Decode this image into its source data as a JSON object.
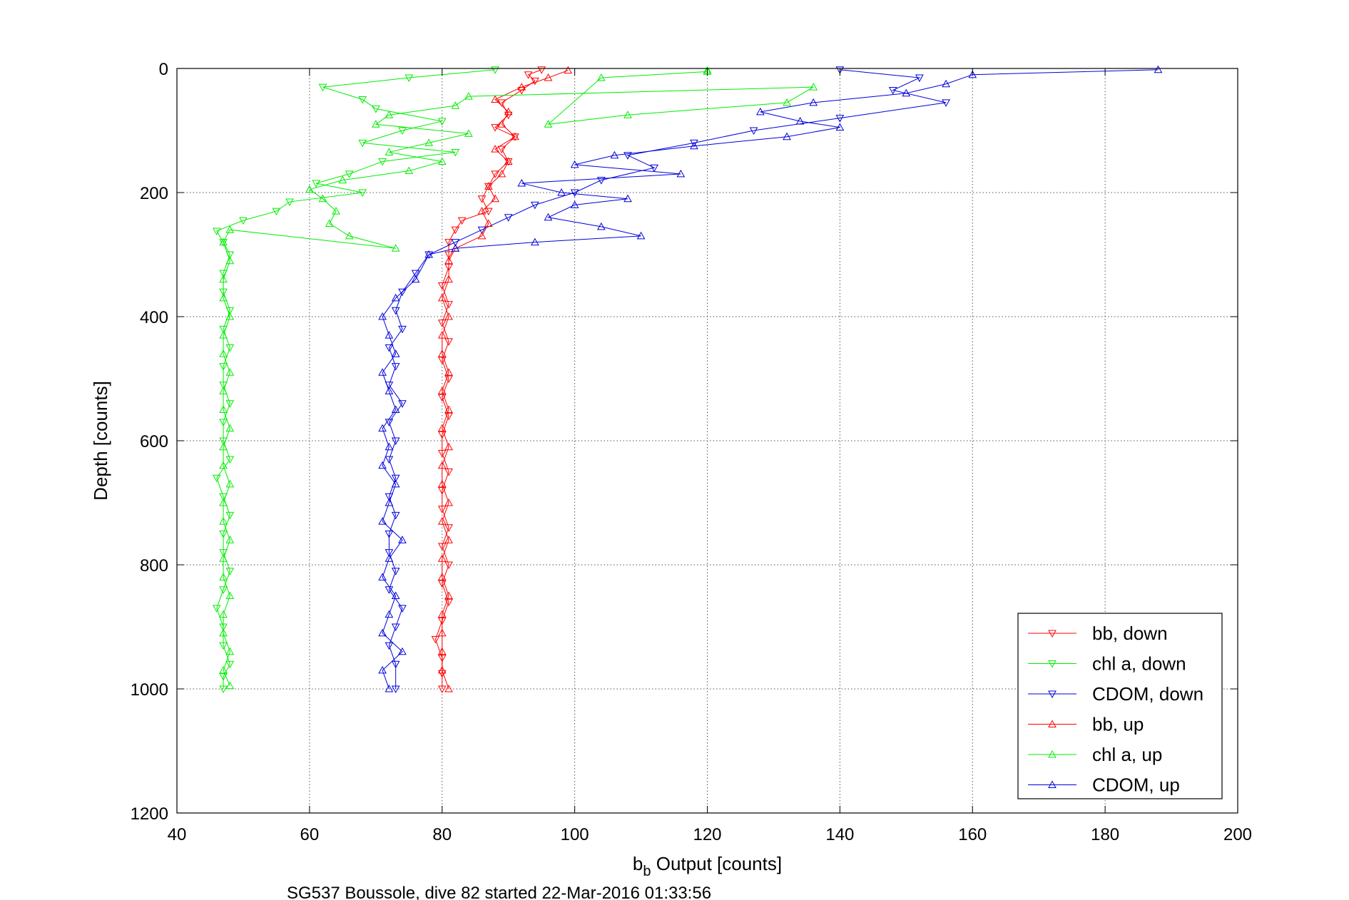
{
  "chart_data": {
    "type": "line",
    "xlabel_main": "b",
    "xlabel_sub": "b",
    "xlabel_rest": " Output [counts]",
    "ylabel": "Depth [counts]",
    "footer": "SG537 Boussole, dive 82 started 22-Mar-2016 01:33:56",
    "xlim": [
      40,
      200
    ],
    "ylim": [
      0,
      1200
    ],
    "y_reversed": true,
    "grid": true,
    "legend_position": "bottom-right",
    "x_ticks": [
      "40",
      "60",
      "80",
      "100",
      "120",
      "140",
      "160",
      "180",
      "200"
    ],
    "y_ticks": [
      "0",
      "200",
      "400",
      "600",
      "800",
      "1000",
      "1200"
    ],
    "series": [
      {
        "name": "bb, down",
        "color": "#ff0000",
        "marker": "triangle-down",
        "points": [
          [
            95,
            2
          ],
          [
            93,
            10
          ],
          [
            94,
            20
          ],
          [
            92,
            35
          ],
          [
            89,
            55
          ],
          [
            90,
            75
          ],
          [
            88,
            95
          ],
          [
            91,
            110
          ],
          [
            89,
            130
          ],
          [
            90,
            150
          ],
          [
            88,
            170
          ],
          [
            87,
            190
          ],
          [
            86,
            210
          ],
          [
            87,
            230
          ],
          [
            83,
            245
          ],
          [
            82,
            260
          ],
          [
            81,
            280
          ],
          [
            81,
            300
          ],
          [
            81,
            320
          ],
          [
            80,
            350
          ],
          [
            81,
            380
          ],
          [
            80,
            410
          ],
          [
            81,
            440
          ],
          [
            80,
            470
          ],
          [
            81,
            500
          ],
          [
            80,
            530
          ],
          [
            81,
            560
          ],
          [
            80,
            590
          ],
          [
            80,
            620
          ],
          [
            81,
            650
          ],
          [
            80,
            680
          ],
          [
            80,
            710
          ],
          [
            81,
            740
          ],
          [
            80,
            770
          ],
          [
            81,
            800
          ],
          [
            80,
            830
          ],
          [
            81,
            860
          ],
          [
            80,
            890
          ],
          [
            79,
            920
          ],
          [
            80,
            950
          ],
          [
            80,
            975
          ],
          [
            80,
            1000
          ]
        ]
      },
      {
        "name": "chl a, down",
        "color": "#00ee00",
        "marker": "triangle-down",
        "points": [
          [
            88,
            2
          ],
          [
            75,
            15
          ],
          [
            62,
            30
          ],
          [
            68,
            50
          ],
          [
            70,
            65
          ],
          [
            80,
            85
          ],
          [
            74,
            100
          ],
          [
            68,
            120
          ],
          [
            82,
            135
          ],
          [
            71,
            150
          ],
          [
            66,
            170
          ],
          [
            61,
            185
          ],
          [
            68,
            200
          ],
          [
            57,
            215
          ],
          [
            55,
            230
          ],
          [
            50,
            245
          ],
          [
            46,
            262
          ],
          [
            47,
            280
          ],
          [
            48,
            300
          ],
          [
            47,
            330
          ],
          [
            47,
            360
          ],
          [
            48,
            390
          ],
          [
            47,
            420
          ],
          [
            48,
            450
          ],
          [
            47,
            480
          ],
          [
            47,
            510
          ],
          [
            48,
            540
          ],
          [
            47,
            570
          ],
          [
            47,
            600
          ],
          [
            48,
            630
          ],
          [
            46,
            660
          ],
          [
            47,
            690
          ],
          [
            48,
            720
          ],
          [
            47,
            750
          ],
          [
            47,
            780
          ],
          [
            48,
            810
          ],
          [
            47,
            840
          ],
          [
            46,
            870
          ],
          [
            47,
            900
          ],
          [
            47,
            930
          ],
          [
            48,
            960
          ],
          [
            47,
            980
          ],
          [
            47,
            1000
          ]
        ]
      },
      {
        "name": "CDOM, down",
        "color": "#0000dd",
        "marker": "triangle-down",
        "points": [
          [
            140,
            2
          ],
          [
            152,
            15
          ],
          [
            148,
            35
          ],
          [
            156,
            55
          ],
          [
            140,
            80
          ],
          [
            127,
            100
          ],
          [
            118,
            120
          ],
          [
            108,
            140
          ],
          [
            112,
            160
          ],
          [
            104,
            180
          ],
          [
            100,
            200
          ],
          [
            94,
            220
          ],
          [
            90,
            240
          ],
          [
            86,
            260
          ],
          [
            82,
            280
          ],
          [
            78,
            300
          ],
          [
            76,
            330
          ],
          [
            74,
            360
          ],
          [
            73,
            390
          ],
          [
            74,
            420
          ],
          [
            72,
            450
          ],
          [
            73,
            480
          ],
          [
            72,
            510
          ],
          [
            74,
            540
          ],
          [
            72,
            570
          ],
          [
            73,
            600
          ],
          [
            72,
            630
          ],
          [
            73,
            660
          ],
          [
            72,
            690
          ],
          [
            73,
            720
          ],
          [
            72,
            750
          ],
          [
            72,
            780
          ],
          [
            73,
            810
          ],
          [
            72,
            840
          ],
          [
            74,
            870
          ],
          [
            73,
            900
          ],
          [
            72,
            930
          ],
          [
            73,
            960
          ],
          [
            73,
            1000
          ]
        ]
      },
      {
        "name": "bb, up",
        "color": "#ff0000",
        "marker": "triangle-up",
        "points": [
          [
            81,
            1000
          ],
          [
            80,
            970
          ],
          [
            80,
            940
          ],
          [
            80,
            910
          ],
          [
            80,
            880
          ],
          [
            81,
            850
          ],
          [
            80,
            820
          ],
          [
            80,
            790
          ],
          [
            81,
            760
          ],
          [
            80,
            730
          ],
          [
            81,
            700
          ],
          [
            80,
            670
          ],
          [
            80,
            640
          ],
          [
            81,
            610
          ],
          [
            80,
            580
          ],
          [
            81,
            550
          ],
          [
            80,
            520
          ],
          [
            81,
            490
          ],
          [
            80,
            460
          ],
          [
            80,
            430
          ],
          [
            81,
            400
          ],
          [
            80,
            370
          ],
          [
            81,
            340
          ],
          [
            81,
            310
          ],
          [
            82,
            290
          ],
          [
            86,
            270
          ],
          [
            87,
            250
          ],
          [
            86,
            230
          ],
          [
            88,
            210
          ],
          [
            87,
            190
          ],
          [
            89,
            170
          ],
          [
            90,
            150
          ],
          [
            88,
            130
          ],
          [
            91,
            110
          ],
          [
            89,
            90
          ],
          [
            90,
            70
          ],
          [
            88,
            50
          ],
          [
            92,
            30
          ],
          [
            96,
            15
          ],
          [
            99,
            3
          ]
        ]
      },
      {
        "name": "chl a, up",
        "color": "#00ee00",
        "marker": "triangle-up",
        "points": [
          [
            48,
            995
          ],
          [
            47,
            970
          ],
          [
            48,
            940
          ],
          [
            47,
            910
          ],
          [
            47,
            880
          ],
          [
            48,
            850
          ],
          [
            47,
            820
          ],
          [
            47,
            790
          ],
          [
            48,
            760
          ],
          [
            47,
            730
          ],
          [
            47,
            700
          ],
          [
            48,
            670
          ],
          [
            47,
            640
          ],
          [
            47,
            610
          ],
          [
            48,
            580
          ],
          [
            47,
            550
          ],
          [
            47,
            520
          ],
          [
            48,
            490
          ],
          [
            47,
            460
          ],
          [
            47,
            430
          ],
          [
            48,
            400
          ],
          [
            47,
            370
          ],
          [
            47,
            340
          ],
          [
            48,
            310
          ],
          [
            47,
            280
          ],
          [
            48,
            260
          ],
          [
            73,
            290
          ],
          [
            66,
            270
          ],
          [
            63,
            250
          ],
          [
            64,
            230
          ],
          [
            62,
            210
          ],
          [
            60,
            195
          ],
          [
            65,
            180
          ],
          [
            75,
            165
          ],
          [
            80,
            150
          ],
          [
            72,
            135
          ],
          [
            78,
            120
          ],
          [
            84,
            105
          ],
          [
            70,
            90
          ],
          [
            72,
            75
          ],
          [
            82,
            60
          ],
          [
            84,
            45
          ],
          [
            136,
            30
          ],
          [
            132,
            55
          ],
          [
            108,
            75
          ],
          [
            96,
            90
          ],
          [
            104,
            15
          ],
          [
            120,
            5
          ],
          [
            120,
            3
          ]
        ]
      },
      {
        "name": "CDOM, up",
        "color": "#0000dd",
        "marker": "triangle-up",
        "points": [
          [
            72,
            1000
          ],
          [
            71,
            970
          ],
          [
            74,
            940
          ],
          [
            71,
            910
          ],
          [
            72,
            880
          ],
          [
            73,
            850
          ],
          [
            71,
            820
          ],
          [
            72,
            790
          ],
          [
            74,
            760
          ],
          [
            71,
            730
          ],
          [
            72,
            700
          ],
          [
            73,
            670
          ],
          [
            71,
            640
          ],
          [
            72,
            610
          ],
          [
            71,
            580
          ],
          [
            73,
            550
          ],
          [
            72,
            520
          ],
          [
            71,
            490
          ],
          [
            73,
            460
          ],
          [
            72,
            430
          ],
          [
            71,
            400
          ],
          [
            73,
            370
          ],
          [
            76,
            340
          ],
          [
            78,
            300
          ],
          [
            82,
            290
          ],
          [
            94,
            280
          ],
          [
            110,
            270
          ],
          [
            104,
            255
          ],
          [
            96,
            240
          ],
          [
            100,
            220
          ],
          [
            108,
            210
          ],
          [
            98,
            200
          ],
          [
            92,
            185
          ],
          [
            116,
            170
          ],
          [
            100,
            155
          ],
          [
            106,
            140
          ],
          [
            118,
            125
          ],
          [
            132,
            110
          ],
          [
            140,
            95
          ],
          [
            134,
            85
          ],
          [
            128,
            70
          ],
          [
            136,
            55
          ],
          [
            150,
            40
          ],
          [
            156,
            25
          ],
          [
            160,
            10
          ],
          [
            188,
            2
          ]
        ]
      }
    ]
  }
}
